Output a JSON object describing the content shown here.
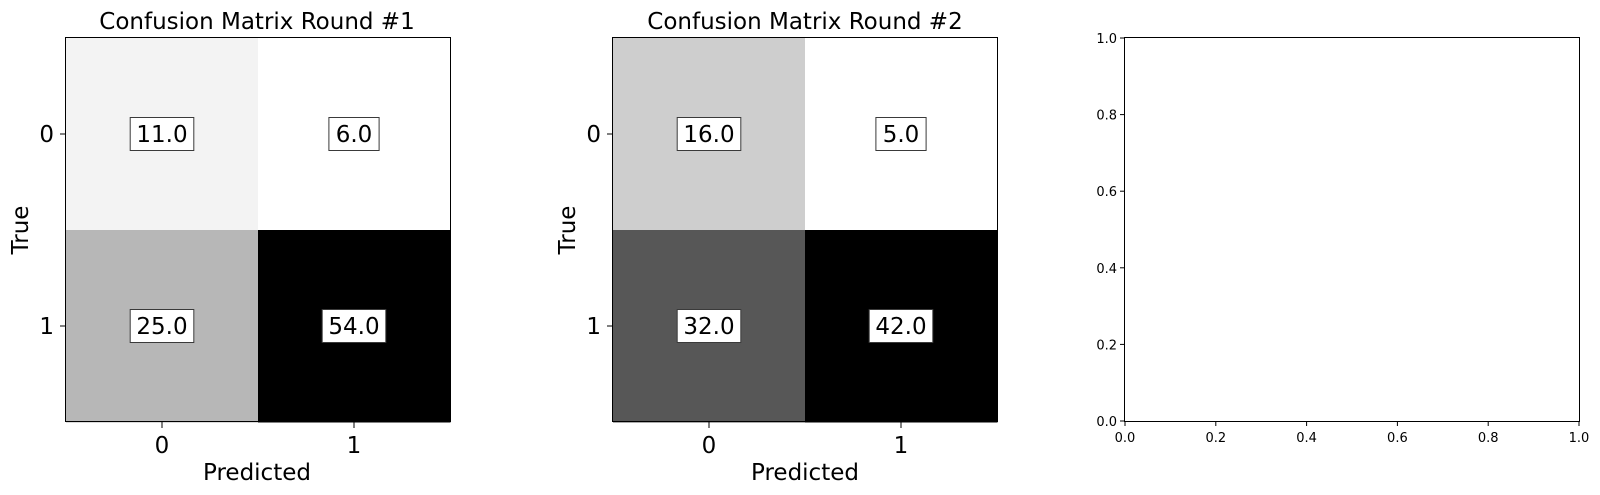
{
  "chart_data": [
    {
      "type": "heatmap",
      "title": "Confusion Matrix Round #1",
      "xlabel": "Predicted",
      "ylabel": "True",
      "x_ticks": [
        "0",
        "1"
      ],
      "y_ticks": [
        "0",
        "1"
      ],
      "values": [
        [
          11.0,
          6.0
        ],
        [
          25.0,
          54.0
        ]
      ],
      "cell_labels": [
        [
          "11.0",
          "6.0"
        ],
        [
          "25.0",
          "54.0"
        ]
      ],
      "colormap": "Greys",
      "color_range": [
        6.0,
        54.0
      ]
    },
    {
      "type": "heatmap",
      "title": "Confusion Matrix Round #2",
      "xlabel": "Predicted",
      "ylabel": "True",
      "x_ticks": [
        "0",
        "1"
      ],
      "y_ticks": [
        "0",
        "1"
      ],
      "values": [
        [
          16.0,
          5.0
        ],
        [
          32.0,
          42.0
        ]
      ],
      "cell_labels": [
        [
          "16.0",
          "5.0"
        ],
        [
          "32.0",
          "42.0"
        ]
      ],
      "colormap": "Greys",
      "color_range": [
        5.0,
        42.0
      ]
    },
    {
      "type": "scatter",
      "title": "",
      "xlabel": "",
      "ylabel": "",
      "xlim": [
        0.0,
        1.0
      ],
      "ylim": [
        0.0,
        1.0
      ],
      "x_ticks": [
        "0.0",
        "0.2",
        "0.4",
        "0.6",
        "0.8",
        "1.0"
      ],
      "y_ticks": [
        "0.0",
        "0.2",
        "0.4",
        "0.6",
        "0.8",
        "1.0"
      ],
      "series": []
    }
  ]
}
